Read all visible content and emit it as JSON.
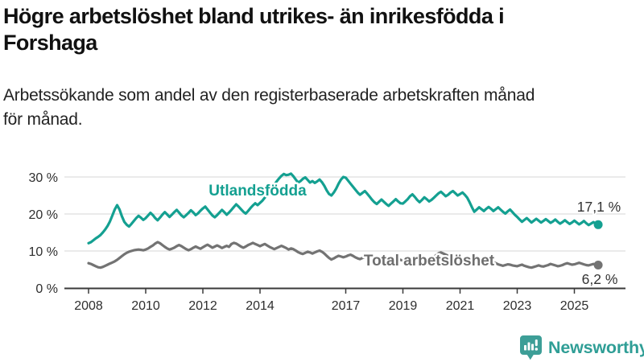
{
  "header": {
    "title": "Högre arbetslöshet bland utrikes- än inrikesfödda i\nForshaga",
    "subtitle": "Arbetssökande som andel av den registerbaserade arbetskraften månad\nför månad."
  },
  "chart_data": {
    "type": "line",
    "title": "Högre arbetslöshet bland utrikes- än inrikesfödda i Forshaga",
    "subtitle": "Arbetssökande som andel av den registerbaserade arbetskraften månad för månad.",
    "unit": "%",
    "grid": true,
    "legend_position": "inline-labels",
    "ylim": [
      0,
      33
    ],
    "x_range": [
      2008.0,
      2025.8333
    ],
    "x_ticks": [
      {
        "label": "2008",
        "year": 2008
      },
      {
        "label": "2010",
        "year": 2010
      },
      {
        "label": "2012",
        "year": 2012
      },
      {
        "label": "2014",
        "year": 2014
      },
      {
        "label": "2017",
        "year": 2017
      },
      {
        "label": "2019",
        "year": 2019
      },
      {
        "label": "2021",
        "year": 2021
      },
      {
        "label": "2023",
        "year": 2023
      },
      {
        "label": "2025",
        "year": 2025
      }
    ],
    "y_ticks": [
      {
        "label": "0 %",
        "value": 0
      },
      {
        "label": "10 %",
        "value": 10
      },
      {
        "label": "20 %",
        "value": 20
      },
      {
        "label": "30 %",
        "value": 30
      }
    ],
    "series": [
      {
        "name": "Utlandsfödda",
        "color": "#14a091",
        "end_label": "17,1 %",
        "end_value": 17.1,
        "values": [
          12.1,
          12.4,
          12.9,
          13.4,
          13.8,
          14.3,
          15.0,
          15.8,
          16.8,
          18.0,
          19.6,
          21.2,
          22.4,
          21.2,
          19.4,
          17.9,
          17.1,
          16.6,
          17.3,
          18.1,
          18.9,
          19.5,
          19.0,
          18.4,
          18.9,
          19.6,
          20.3,
          19.7,
          18.9,
          18.3,
          19.0,
          19.8,
          20.5,
          19.9,
          19.2,
          19.8,
          20.5,
          21.1,
          20.4,
          19.6,
          19.1,
          19.7,
          20.3,
          21.0,
          20.4,
          19.7,
          20.2,
          20.9,
          21.5,
          22.0,
          21.2,
          20.4,
          19.6,
          19.1,
          19.7,
          20.4,
          21.1,
          20.5,
          19.8,
          20.4,
          21.1,
          21.9,
          22.6,
          22.0,
          21.3,
          20.6,
          20.1,
          20.8,
          21.6,
          22.3,
          22.9,
          22.4,
          23.0,
          23.6,
          24.4,
          25.2,
          26.1,
          27.0,
          27.9,
          28.8,
          29.6,
          30.3,
          30.8,
          30.5,
          30.6,
          30.9,
          30.2,
          29.3,
          28.5,
          28.9,
          29.5,
          29.9,
          29.2,
          28.5,
          28.9,
          28.4,
          28.8,
          29.3,
          28.6,
          27.6,
          26.4,
          25.4,
          25.0,
          25.8,
          26.9,
          28.2,
          29.3,
          30.0,
          29.8,
          29.0,
          28.2,
          27.4,
          26.6,
          25.8,
          25.2,
          25.7,
          26.2,
          25.5,
          24.7,
          23.9,
          23.2,
          22.7,
          23.3,
          23.9,
          23.3,
          22.7,
          22.2,
          22.8,
          23.4,
          24.0,
          23.4,
          22.9,
          22.8,
          23.4,
          24.0,
          24.8,
          25.3,
          24.6,
          23.8,
          23.2,
          23.8,
          24.5,
          24.0,
          23.4,
          23.8,
          24.4,
          25.0,
          25.6,
          26.0,
          25.4,
          24.8,
          25.2,
          25.8,
          26.2,
          25.6,
          25.0,
          25.4,
          25.8,
          25.2,
          24.4,
          23.2,
          21.8,
          20.6,
          21.2,
          21.8,
          21.3,
          20.8,
          21.4,
          21.9,
          21.4,
          20.8,
          21.3,
          21.8,
          21.2,
          20.6,
          20.1,
          20.7,
          21.2,
          20.5,
          19.8,
          19.2,
          18.5,
          17.9,
          18.4,
          18.9,
          18.3,
          17.7,
          18.2,
          18.7,
          18.2,
          17.7,
          18.1,
          18.6,
          18.1,
          17.6,
          18.0,
          18.5,
          17.9,
          17.4,
          17.8,
          18.3,
          17.8,
          17.3,
          17.7,
          18.2,
          17.7,
          17.2,
          17.6,
          18.1,
          17.5,
          17.0,
          17.4,
          17.8,
          17.3,
          17.1
        ]
      },
      {
        "name": "Total arbetslöshet",
        "color": "#737373",
        "end_label": "6,2 %",
        "end_value": 6.2,
        "values": [
          6.7,
          6.5,
          6.2,
          5.9,
          5.6,
          5.5,
          5.7,
          6.0,
          6.3,
          6.6,
          6.9,
          7.2,
          7.6,
          8.1,
          8.6,
          9.1,
          9.5,
          9.8,
          10.0,
          10.2,
          10.3,
          10.4,
          10.3,
          10.2,
          10.4,
          10.7,
          11.1,
          11.5,
          12.0,
          12.4,
          12.1,
          11.6,
          11.1,
          10.7,
          10.4,
          10.6,
          10.9,
          11.3,
          11.6,
          11.3,
          10.9,
          10.5,
          10.2,
          10.5,
          10.9,
          11.2,
          10.9,
          10.6,
          11.0,
          11.4,
          11.7,
          11.3,
          10.9,
          11.2,
          11.5,
          11.2,
          10.8,
          11.1,
          11.4,
          11.1,
          11.9,
          12.2,
          12.0,
          11.6,
          11.2,
          10.9,
          11.2,
          11.6,
          11.9,
          12.2,
          11.9,
          11.6,
          11.3,
          11.6,
          11.9,
          11.5,
          11.1,
          10.8,
          10.5,
          10.8,
          11.1,
          11.4,
          11.1,
          10.8,
          10.4,
          10.7,
          10.5,
          10.1,
          9.7,
          9.4,
          9.2,
          9.5,
          9.8,
          9.6,
          9.3,
          9.6,
          9.9,
          10.1,
          9.8,
          9.3,
          8.7,
          8.1,
          7.7,
          8.0,
          8.4,
          8.7,
          8.5,
          8.3,
          8.5,
          8.8,
          9.0,
          8.7,
          8.3,
          8.0,
          7.8,
          8.1,
          8.4,
          8.6,
          8.3,
          8.0,
          7.8,
          8.1,
          8.4,
          8.1,
          7.8,
          7.5,
          7.3,
          7.6,
          7.9,
          8.1,
          7.8,
          7.6,
          7.4,
          7.7,
          8.0,
          7.7,
          7.4,
          7.1,
          6.9,
          7.2,
          7.5,
          7.8,
          7.5,
          7.3,
          7.7,
          8.3,
          8.9,
          9.4,
          9.6,
          9.3,
          9.0,
          8.7,
          8.5,
          8.3,
          8.1,
          7.9,
          7.7,
          7.9,
          8.1,
          7.8,
          7.5,
          7.2,
          7.0,
          7.2,
          7.4,
          7.2,
          7.0,
          6.8,
          6.6,
          6.8,
          7.0,
          6.7,
          6.4,
          6.2,
          6.0,
          6.2,
          6.4,
          6.3,
          6.1,
          6.0,
          5.9,
          6.1,
          6.3,
          6.0,
          5.8,
          5.6,
          5.5,
          5.7,
          5.9,
          6.1,
          5.9,
          5.8,
          6.0,
          6.2,
          6.5,
          6.3,
          6.1,
          5.9,
          6.0,
          6.2,
          6.5,
          6.7,
          6.5,
          6.3,
          6.4,
          6.6,
          6.8,
          6.6,
          6.4,
          6.2,
          6.1,
          6.3,
          6.5,
          6.3,
          6.2
        ]
      }
    ]
  },
  "footer": {
    "brand": "Newsworthy",
    "brand_color": "#2f9e96",
    "logo_icon": "bar-chart-speech-bubble"
  }
}
